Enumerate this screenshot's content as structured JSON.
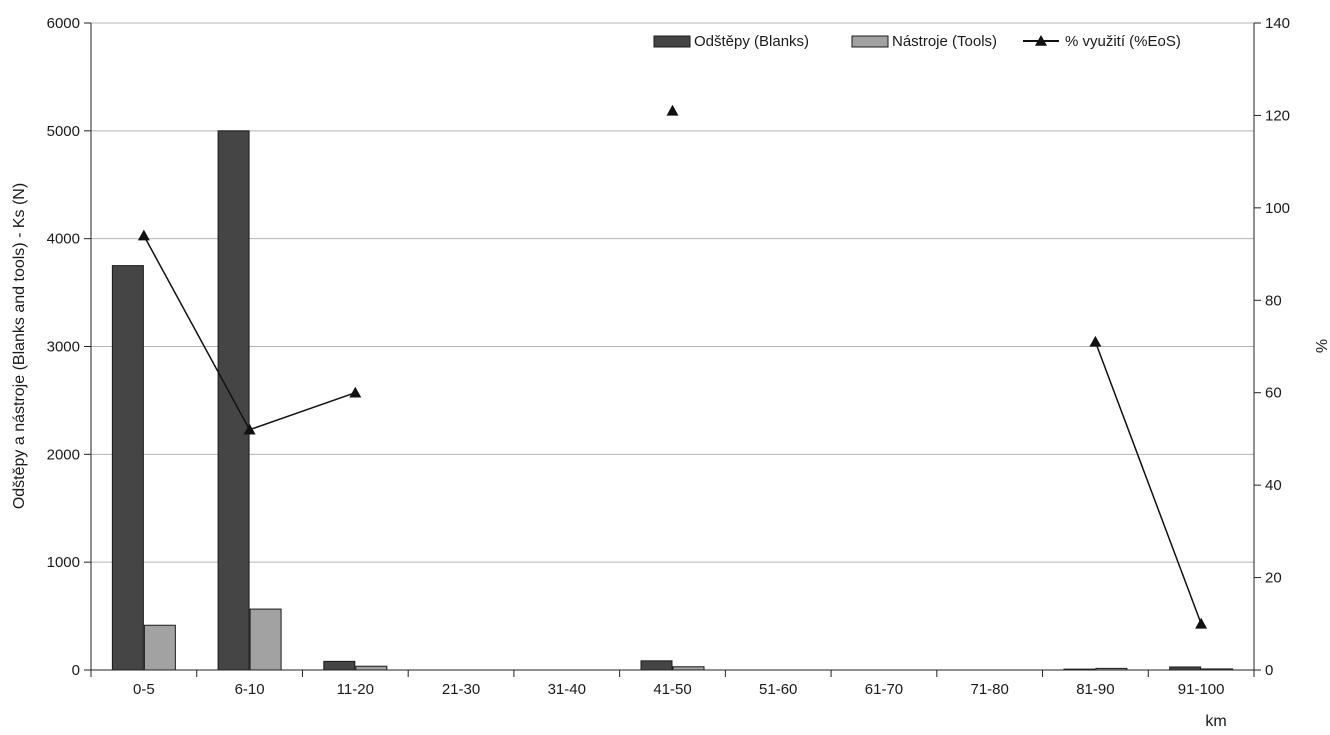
{
  "chart_data": {
    "type": "bar",
    "categories": [
      "0-5",
      "6-10",
      "11-20",
      "21-30",
      "31-40",
      "41-50",
      "51-60",
      "61-70",
      "71-80",
      "81-90",
      "91-100"
    ],
    "series": [
      {
        "name": "Odštěpy (Blanks)",
        "axis": "left",
        "kind": "bar",
        "color": "#454545",
        "values": [
          3750,
          5000,
          80,
          0,
          0,
          85,
          0,
          0,
          0,
          8,
          28
        ]
      },
      {
        "name": "Nástroje (Tools)",
        "axis": "left",
        "kind": "bar",
        "color": "#a2a2a2",
        "values": [
          415,
          565,
          35,
          0,
          0,
          30,
          0,
          0,
          0,
          15,
          10
        ]
      },
      {
        "name": "% využití (%EoS)",
        "axis": "right",
        "kind": "line",
        "marker": "triangle",
        "color": "#111111",
        "values": [
          94,
          52,
          60,
          null,
          null,
          121,
          null,
          null,
          null,
          71,
          10
        ]
      }
    ],
    "xlabel": "km",
    "ylabel": "Odštěpy a nástroje (Blanks and tools) - Ks (N)",
    "ylabel_right": "%",
    "ylim": [
      0,
      6000
    ],
    "yticks": [
      "0",
      "1000",
      "2000",
      "3000",
      "4000",
      "5000",
      "6000"
    ],
    "ylim_right": [
      0,
      140
    ],
    "yticks_right": [
      "0",
      "20",
      "40",
      "60",
      "80",
      "100",
      "120",
      "140"
    ],
    "grid": "horizontal",
    "legend_position": "top-right"
  }
}
